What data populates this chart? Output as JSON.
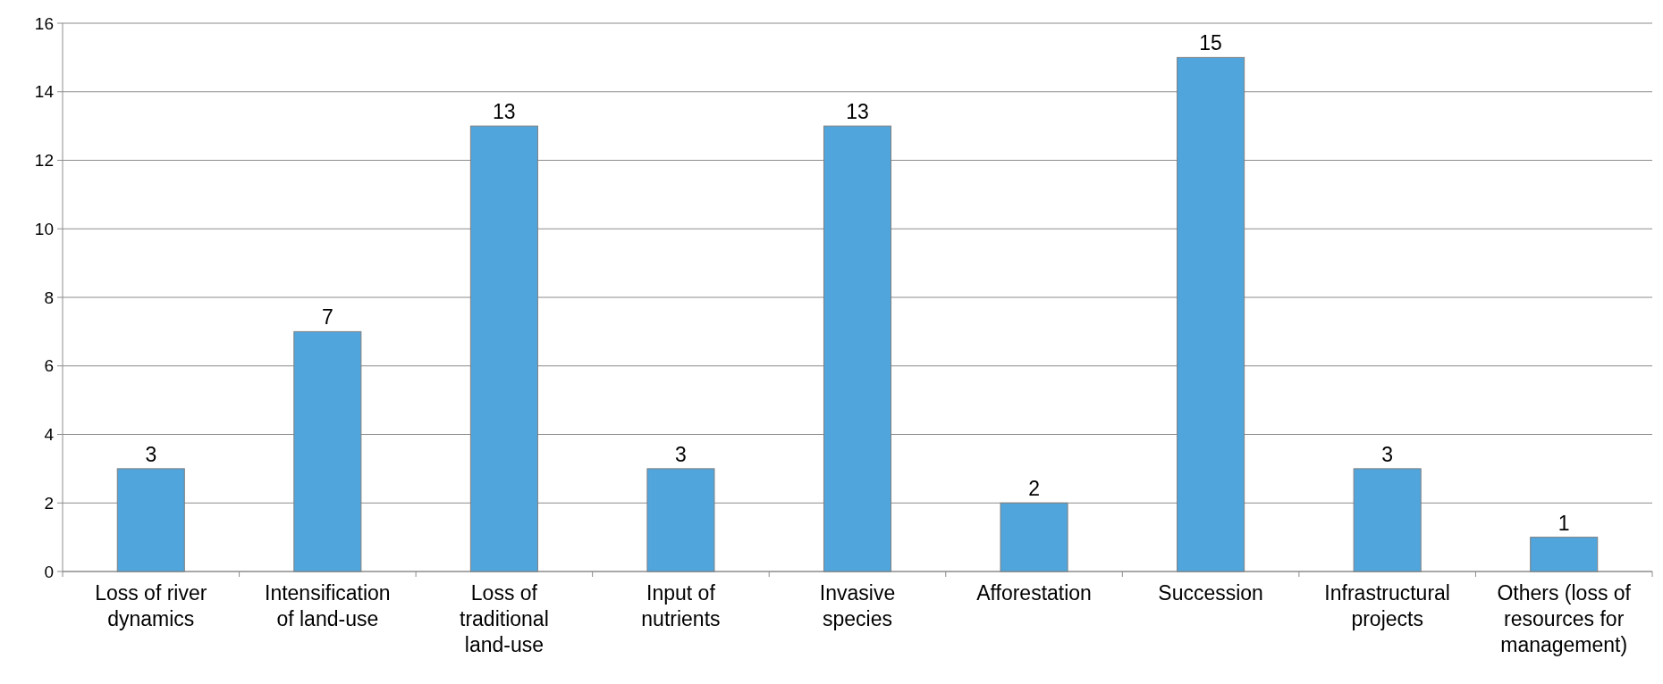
{
  "chart_data": {
    "type": "bar",
    "categories": [
      "Loss of river dynamics",
      "Intensification of land-use",
      "Loss of traditional land-use",
      "Input of nutrients",
      "Invasive species",
      "Afforestation",
      "Succession",
      "Infrastructural projects",
      "Others (loss of resources for management)"
    ],
    "values": [
      3,
      7,
      13,
      3,
      13,
      2,
      15,
      3,
      1
    ],
    "color": "#4fa5dc",
    "ylim": [
      0,
      16
    ],
    "yticks": [
      0,
      2,
      4,
      6,
      8,
      10,
      12,
      14,
      16
    ],
    "grid": "y",
    "data_labels": true
  }
}
